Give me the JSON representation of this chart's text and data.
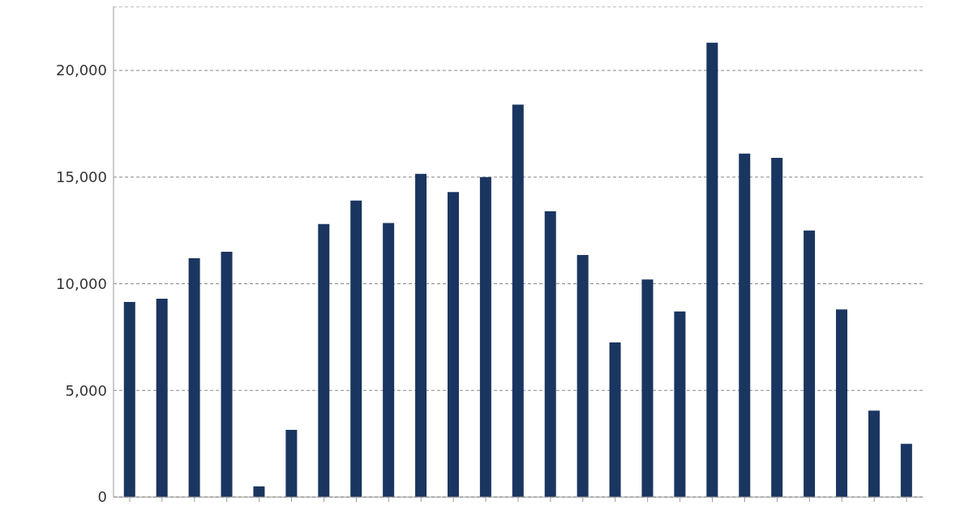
{
  "chart_data": {
    "type": "bar",
    "categories": [
      null,
      null,
      null,
      null,
      null,
      null,
      null,
      null,
      null,
      null,
      null,
      null,
      null,
      null,
      null,
      null,
      null,
      null,
      null,
      null,
      null,
      null,
      null,
      null,
      null
    ],
    "values": [
      9150,
      9300,
      11200,
      11500,
      500,
      3150,
      12800,
      13900,
      12850,
      15150,
      14300,
      15000,
      18400,
      13400,
      11350,
      7250,
      10200,
      8700,
      21300,
      16100,
      15900,
      12500,
      8800,
      4050,
      2500
    ],
    "color": "#1a3560",
    "ylim": [
      0,
      23000
    ],
    "yticks": [
      0,
      {
        "value": 5000,
        "label": "5,000"
      },
      {
        "value": 10000,
        "label": "10,000"
      },
      {
        "value": 15000,
        "label": "15,000"
      },
      {
        "value": 20000,
        "label": "20,000"
      }
    ],
    "grid": "y"
  }
}
